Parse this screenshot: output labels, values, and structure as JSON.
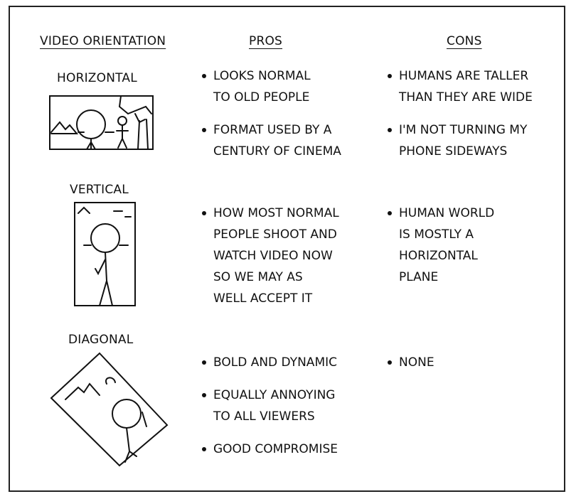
{
  "headers": {
    "orientation": "VIDEO ORIENTATION",
    "pros": "PROS",
    "cons": "CONS"
  },
  "rows": [
    {
      "label": "HORIZONTAL",
      "pros": [
        [
          "LOOKS NORMAL",
          "TO OLD PEOPLE"
        ],
        [
          "FORMAT USED BY A",
          "CENTURY OF CINEMA"
        ]
      ],
      "cons": [
        [
          "HUMANS ARE TALLER",
          "THAN THEY ARE WIDE"
        ],
        [
          "I'M NOT TURNING MY",
          "PHONE SIDEWAYS"
        ]
      ]
    },
    {
      "label": "VERTICAL",
      "pros": [
        [
          "HOW MOST NORMAL",
          "PEOPLE SHOOT AND",
          "WATCH VIDEO NOW",
          "SO WE MAY AS",
          "WELL ACCEPT IT"
        ]
      ],
      "cons": [
        [
          "HUMAN WORLD",
          "IS MOSTLY A",
          "HORIZONTAL",
          "PLANE"
        ]
      ]
    },
    {
      "label": "DIAGONAL",
      "pros": [
        [
          "BOLD AND DYNAMIC"
        ],
        [
          "EQUALLY ANNOYING",
          "TO ALL VIEWERS"
        ],
        [
          "GOOD COMPROMISE"
        ]
      ],
      "cons": [
        [
          "NONE"
        ]
      ]
    }
  ]
}
